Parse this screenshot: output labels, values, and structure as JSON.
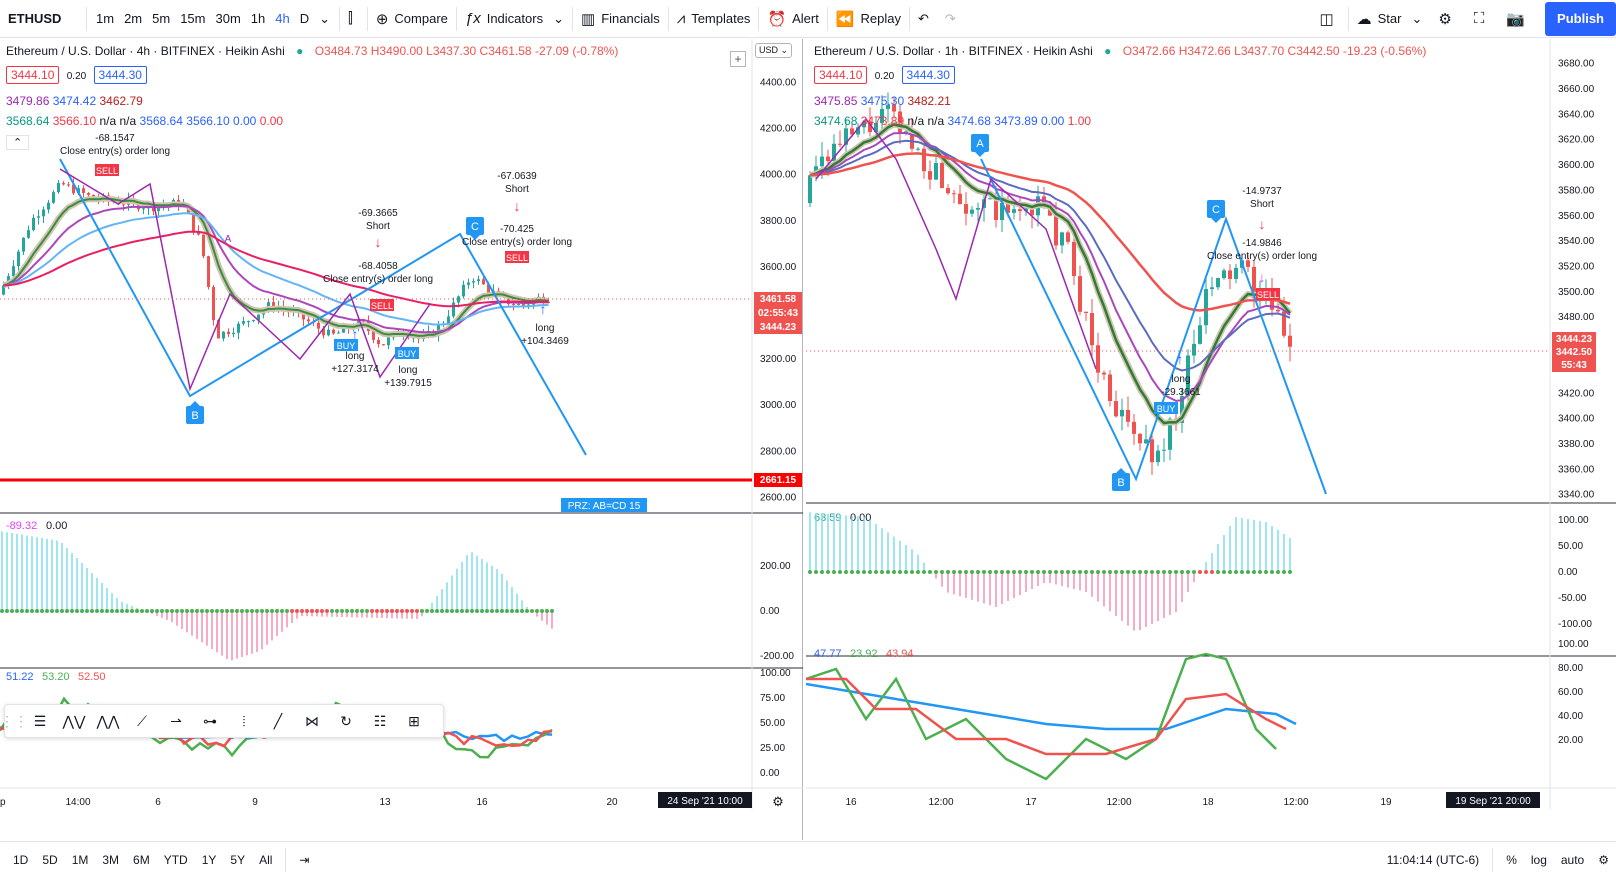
{
  "toolbar": {
    "symbol": "ETHUSD",
    "intervals": [
      "1m",
      "2m",
      "5m",
      "15m",
      "30m",
      "1h",
      "4h",
      "D"
    ],
    "active_interval": "4h",
    "compare": "Compare",
    "indicators": "Indicators",
    "financials": "Financials",
    "templates": "Templates",
    "alert": "Alert",
    "replay": "Replay",
    "star": "Star",
    "publish": "Publish"
  },
  "left_chart": {
    "title": "Ethereum / U.S. Dollar · 4h · BITFINEX · Heikin Ashi",
    "ohlc": {
      "o": "3484.73",
      "h": "3490.00",
      "l": "3437.30",
      "c": "3461.58",
      "chg": "-27.09 (-0.78%)"
    },
    "sell_box": "3444.10",
    "spread": "0.20",
    "buy_box": "3444.30",
    "ind1": [
      "3479.86",
      "3474.42",
      "3462.79"
    ],
    "ind2": [
      "3568.64",
      "3566.10",
      "n/a",
      "n/a",
      "3568.64",
      "3566.10",
      "0.00",
      "0.00"
    ],
    "currency": "USD",
    "price_ticks": [
      "4400.00",
      "4200.00",
      "4000.00",
      "3800.00",
      "3600.00",
      "3400.00",
      "3200.00",
      "3000.00",
      "2800.00",
      "2600.00"
    ],
    "tags": {
      "last": "3461.58",
      "countdown": "02:55:43",
      "bid": "3444.23",
      "level": "2661.15"
    },
    "annotations": {
      "a1": "-68.1547",
      "a1b": "Close entry(s) order long",
      "a2": "-69.3665",
      "a2b": "Short",
      "a3": "-68.4058",
      "a3b": "Close entry(s) order long",
      "a4": "-67.0639",
      "a4b": "Short",
      "a5": "-70.425",
      "a5b": "Close entry(s) order long",
      "l1": "long",
      "l1b": "+127.3174",
      "l2": "long",
      "l2b": "+139.7915",
      "l3": "long",
      "l3b": "+104.3469",
      "sell": "SELL",
      "buy": "BUY",
      "pointB": "B",
      "pointC": "C",
      "pointA": "A",
      "prz": "PRZ: AB=CD 15"
    },
    "osc_legend": [
      "-89.32",
      "0.00"
    ],
    "osc_ticks": [
      "200.00",
      "0.00",
      "-200.00"
    ],
    "rsi_legend": [
      "51.22",
      "53.20",
      "52.50"
    ],
    "rsi_ticks": [
      "100.00",
      "75.00",
      "50.00",
      "25.00",
      "0.00"
    ],
    "time_ticks": [
      "p",
      "14:00",
      "6",
      "9",
      "13",
      "16",
      "20"
    ],
    "time_tag": "24 Sep '21   10:00"
  },
  "right_chart": {
    "title": "Ethereum / U.S. Dollar · 1h · BITFINEX · Heikin Ashi",
    "ohlc": {
      "o": "3472.66",
      "h": "3472.66",
      "l": "3437.70",
      "c": "3442.50",
      "chg": "-19.23 (-0.56%)"
    },
    "sell_box": "3444.10",
    "spread": "0.20",
    "buy_box": "3444.30",
    "ind1": [
      "3475.85",
      "3475.30",
      "3482.21"
    ],
    "ind2": [
      "3474.68",
      "3473.89",
      "n/a",
      "n/a",
      "3474.68",
      "3473.89",
      "0.00",
      "1.00"
    ],
    "price_ticks": [
      "3680.00",
      "3660.00",
      "3640.00",
      "3620.00",
      "3600.00",
      "3580.00",
      "3560.00",
      "3540.00",
      "3520.00",
      "3500.00",
      "3480.00",
      "3460.00",
      "3440.00",
      "3420.00",
      "3400.00",
      "3380.00",
      "3360.00",
      "3340.00"
    ],
    "tags": {
      "last": "3444.23",
      "close": "3442.50",
      "countdown": "55:43"
    },
    "annotations": {
      "s1": "-14.9737",
      "s1b": "Short",
      "s2": "-14.9846",
      "s2b": "Close entry(s) order long",
      "l1": "long",
      "l1b": "-29.3661",
      "sell": "SELL",
      "buy": "BUY",
      "pointA": "A",
      "pointB": "B",
      "pointC": "C"
    },
    "osc_legend": [
      "63.59",
      "0.00"
    ],
    "osc_ticks": [
      "100.00",
      "50.00",
      "0.00",
      "-50.00",
      "-100.00"
    ],
    "rsi_legend": [
      "47.77",
      "23.92",
      "43.94"
    ],
    "rsi_ticks": [
      "100.00",
      "80.00",
      "60.00",
      "40.00",
      "20.00"
    ],
    "time_ticks": [
      "16",
      "12:00",
      "17",
      "12:00",
      "18",
      "12:00",
      "19"
    ],
    "time_tag": "19 Sep '21   20:00"
  },
  "bottombar": {
    "ranges": [
      "1D",
      "5D",
      "1M",
      "3M",
      "6M",
      "YTD",
      "1Y",
      "5Y",
      "All"
    ],
    "clock": "11:04:14 (UTC-6)",
    "pct": "%",
    "log": "log",
    "auto": "auto"
  },
  "colors": {
    "accent": "#2962ff",
    "up": "#26a69a",
    "down": "#ef5350",
    "harmonic": "#2196f3",
    "sell": "#f23645",
    "buy": "#2196f3"
  }
}
